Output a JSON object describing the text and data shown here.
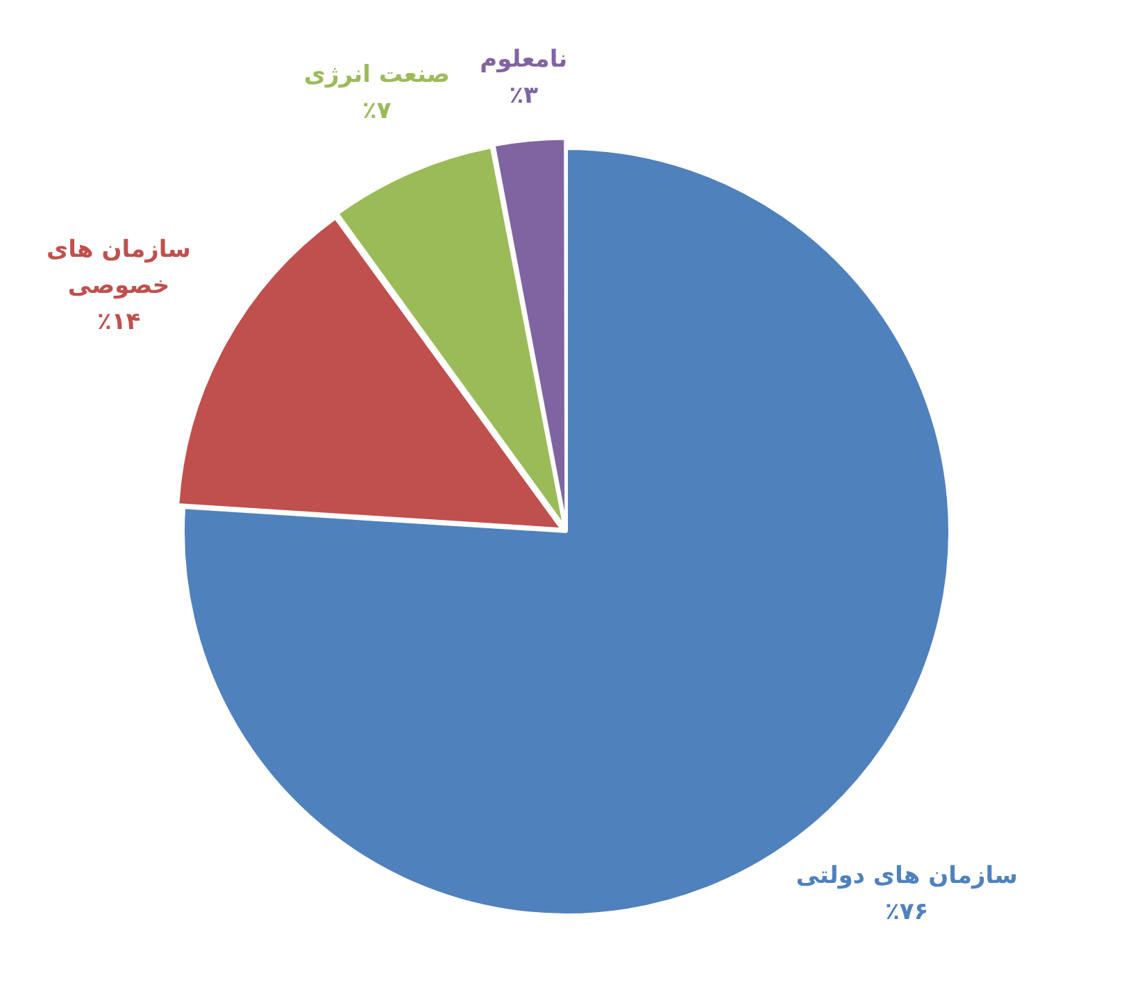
{
  "chart_data": {
    "type": "pie",
    "categories": [
      "سازمان های دولتی",
      "سازمان های خصوصی",
      "صنعت انرژی",
      "نامعلوم"
    ],
    "values": [
      76,
      14,
      7,
      3
    ],
    "value_labels": [
      "٪۷۶",
      "٪۱۴",
      "٪۷",
      "٪۳"
    ],
    "colors": [
      "#4f81bd",
      "#c0504d",
      "#9bbb59",
      "#8064a2"
    ],
    "legend": false
  }
}
